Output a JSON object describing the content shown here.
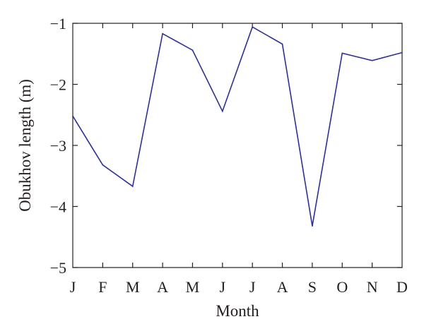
{
  "chart_data": {
    "type": "line",
    "title": "",
    "xlabel": "Month",
    "ylabel": "Obukhov length (m)",
    "categories": [
      "J",
      "F",
      "M",
      "A",
      "M",
      "J",
      "J",
      "A",
      "S",
      "O",
      "N",
      "D"
    ],
    "ylim": [
      -5,
      -1
    ],
    "yticks": [
      -5,
      -4,
      -3,
      -2,
      -1
    ],
    "ytick_labels": [
      "−5",
      "−4",
      "−3",
      "−2",
      "−1"
    ],
    "grid": false,
    "legend": null,
    "series": [
      {
        "values": [
          -2.52,
          -3.32,
          -3.67,
          -1.17,
          -1.44,
          -2.44,
          -1.06,
          -1.34,
          -4.32,
          -1.49,
          -1.61,
          -1.48
        ],
        "color": "#2e3192"
      }
    ],
    "axis_color": "#231f20"
  }
}
